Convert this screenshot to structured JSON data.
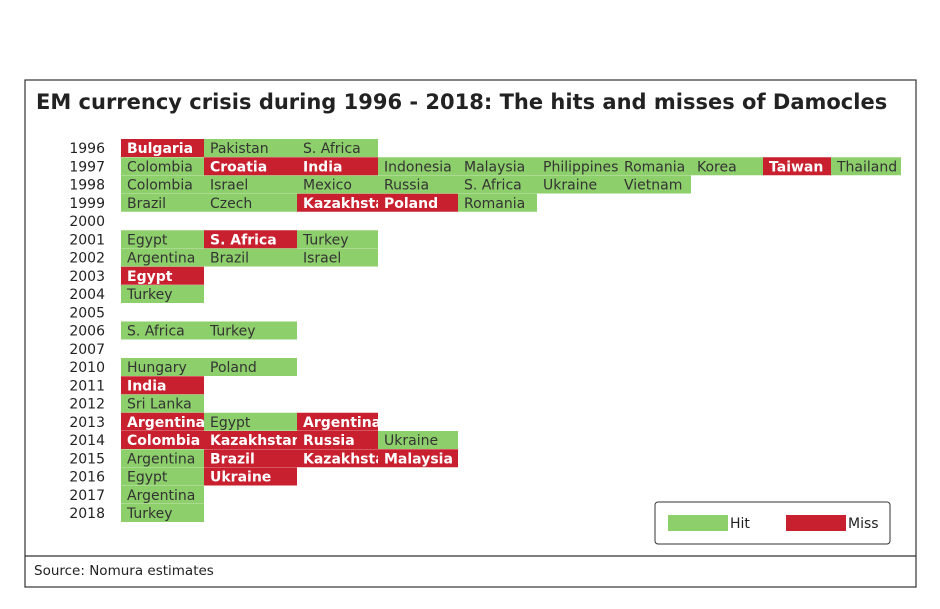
{
  "title": "EM currency crisis during 1996 - 2018: The hits and misses of Damocles",
  "source": "Source: Nomura estimates",
  "legend": [
    {
      "label": "Hit",
      "kind": "hit",
      "color": "#8dcf6b"
    },
    {
      "label": "Miss",
      "kind": "miss",
      "color": "#c8202f"
    }
  ],
  "rows": [
    {
      "year": "1996",
      "cells": [
        {
          "label": "Bulgaria",
          "kind": "miss"
        },
        {
          "label": "Pakistan",
          "kind": "hit"
        },
        {
          "label": "S. Africa",
          "kind": "hit"
        }
      ]
    },
    {
      "year": "1997",
      "cells": [
        {
          "label": "Colombia",
          "kind": "hit"
        },
        {
          "label": "Croatia",
          "kind": "miss"
        },
        {
          "label": "India",
          "kind": "miss"
        },
        {
          "label": "Indonesia",
          "kind": "hit"
        },
        {
          "label": "Malaysia",
          "kind": "hit"
        },
        {
          "label": "Philippines",
          "kind": "hit"
        },
        {
          "label": "Romania",
          "kind": "hit"
        },
        {
          "label": "Korea",
          "kind": "hit"
        },
        {
          "label": "Taiwan",
          "kind": "miss"
        },
        {
          "label": "Thailand",
          "kind": "hit"
        }
      ]
    },
    {
      "year": "1998",
      "cells": [
        {
          "label": "Colombia",
          "kind": "hit"
        },
        {
          "label": "Israel",
          "kind": "hit"
        },
        {
          "label": "Mexico",
          "kind": "hit"
        },
        {
          "label": "Russia",
          "kind": "hit"
        },
        {
          "label": "S. Africa",
          "kind": "hit"
        },
        {
          "label": "Ukraine",
          "kind": "hit"
        },
        {
          "label": "Vietnam",
          "kind": "hit"
        }
      ]
    },
    {
      "year": "1999",
      "cells": [
        {
          "label": "Brazil",
          "kind": "hit"
        },
        {
          "label": "Czech",
          "kind": "hit"
        },
        {
          "label": "Kazakhstan",
          "kind": "miss"
        },
        {
          "label": "Poland",
          "kind": "miss"
        },
        {
          "label": "Romania",
          "kind": "hit"
        }
      ]
    },
    {
      "year": "2000",
      "cells": []
    },
    {
      "year": "2001",
      "cells": [
        {
          "label": "Egypt",
          "kind": "hit"
        },
        {
          "label": "S. Africa",
          "kind": "miss"
        },
        {
          "label": "Turkey",
          "kind": "hit"
        }
      ]
    },
    {
      "year": "2002",
      "cells": [
        {
          "label": "Argentina",
          "kind": "hit"
        },
        {
          "label": "Brazil",
          "kind": "hit"
        },
        {
          "label": "Israel",
          "kind": "hit"
        }
      ]
    },
    {
      "year": "2003",
      "cells": [
        {
          "label": "Egypt",
          "kind": "miss"
        }
      ]
    },
    {
      "year": "2004",
      "cells": [
        {
          "label": "Turkey",
          "kind": "hit"
        }
      ]
    },
    {
      "year": "2005",
      "cells": []
    },
    {
      "year": "2006",
      "cells": [
        {
          "label": "S. Africa",
          "kind": "hit"
        },
        {
          "label": "Turkey",
          "kind": "hit"
        }
      ]
    },
    {
      "year": "2007",
      "cells": []
    },
    {
      "year": "2010",
      "cells": [
        {
          "label": "Hungary",
          "kind": "hit"
        },
        {
          "label": "Poland",
          "kind": "hit"
        }
      ]
    },
    {
      "year": "2011",
      "cells": [
        {
          "label": "India",
          "kind": "miss"
        }
      ]
    },
    {
      "year": "2012",
      "cells": [
        {
          "label": "Sri Lanka",
          "kind": "hit"
        }
      ]
    },
    {
      "year": "2013",
      "cells": [
        {
          "label": "Argentina",
          "kind": "miss"
        },
        {
          "label": "Egypt",
          "kind": "hit"
        },
        {
          "label": "Argentina",
          "kind": "miss"
        }
      ]
    },
    {
      "year": "2014",
      "cells": [
        {
          "label": "Colombia",
          "kind": "miss"
        },
        {
          "label": "Kazakhstan",
          "kind": "miss"
        },
        {
          "label": "Russia",
          "kind": "miss"
        },
        {
          "label": "Ukraine",
          "kind": "hit"
        }
      ]
    },
    {
      "year": "2015",
      "cells": [
        {
          "label": "Argentina",
          "kind": "hit"
        },
        {
          "label": "Brazil",
          "kind": "miss"
        },
        {
          "label": "Kazakhstan",
          "kind": "miss"
        },
        {
          "label": "Malaysia",
          "kind": "miss"
        }
      ]
    },
    {
      "year": "2016",
      "cells": [
        {
          "label": "Egypt",
          "kind": "hit"
        },
        {
          "label": "Ukraine",
          "kind": "miss"
        }
      ]
    },
    {
      "year": "2017",
      "cells": [
        {
          "label": "Argentina",
          "kind": "hit"
        }
      ]
    },
    {
      "year": "2018",
      "cells": [
        {
          "label": "Turkey",
          "kind": "hit"
        }
      ]
    }
  ]
}
